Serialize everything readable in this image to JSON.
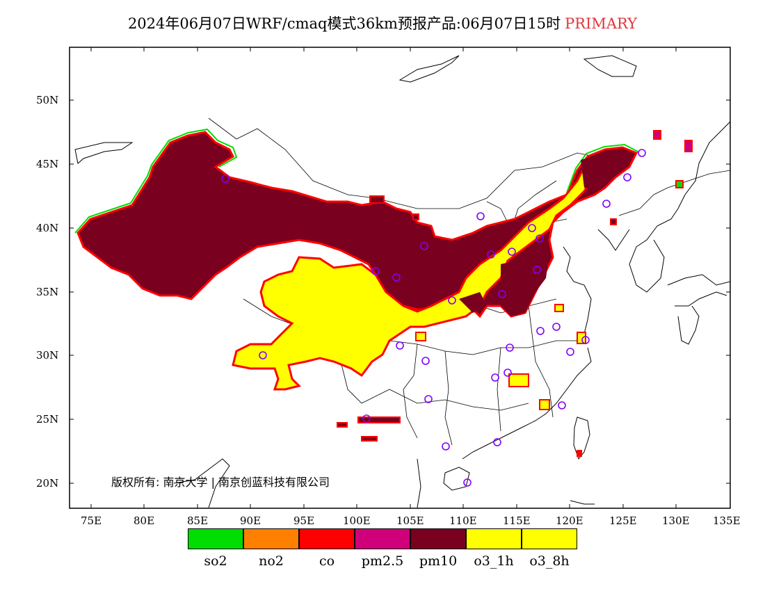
{
  "title": {
    "main": "2024年06月07日WRF/cmaq模式36km预报产品:06月07日15时",
    "tag": "PRIMARY",
    "tag_color": "#e0363c"
  },
  "axes": {
    "lat_labels": [
      "50N",
      "45N",
      "40N",
      "35N",
      "30N",
      "25N",
      "20N"
    ],
    "lon_labels": [
      "75E",
      "80E",
      "85E",
      "90E",
      "95E",
      "100E",
      "105E",
      "110E",
      "115E",
      "120E",
      "125E",
      "130E",
      "135E"
    ]
  },
  "copyright": "版权所有: 南京大学 | 南京创蓝科技有限公司",
  "legend": [
    {
      "label": "so2",
      "color": "#00dd00"
    },
    {
      "label": "no2",
      "color": "#ff8000"
    },
    {
      "label": "co",
      "color": "#ff0000"
    },
    {
      "label": "pm2.5",
      "color": "#d0007a"
    },
    {
      "label": "pm10",
      "color": "#7a0020"
    },
    {
      "label": "o3_1h",
      "color": "#ffff00"
    },
    {
      "label": "o3_8h",
      "color": "#ffff00"
    }
  ]
}
